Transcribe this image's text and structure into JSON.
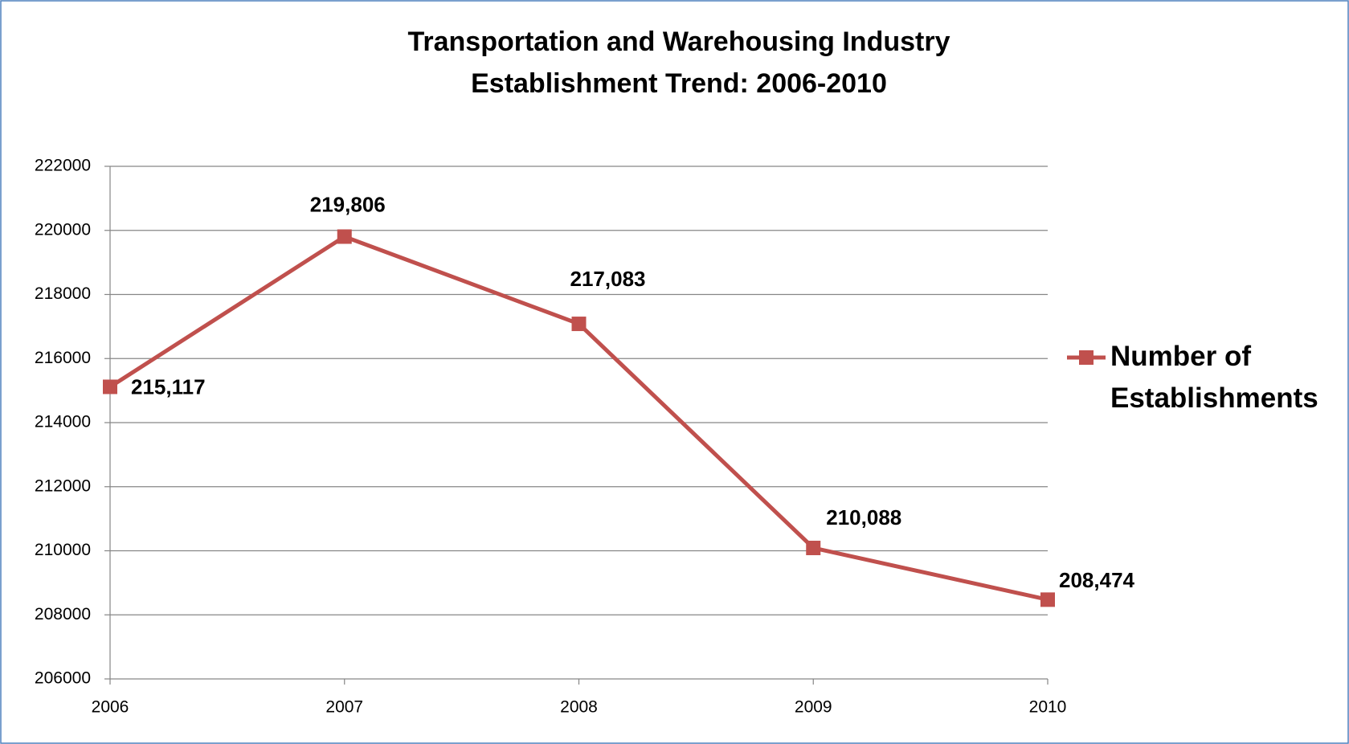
{
  "chart_data": {
    "type": "line",
    "title": [
      "Transportation and Warehousing Industry",
      "Establishment Trend: 2006-2010"
    ],
    "categories": [
      "2006",
      "2007",
      "2008",
      "2009",
      "2010"
    ],
    "series": [
      {
        "name": "Number of Establishments",
        "color": "#c0504d",
        "values": [
          215117,
          219806,
          217083,
          210088,
          208474
        ],
        "value_labels": [
          "215,117",
          "219,806",
          "217,083",
          "210,088",
          "208,474"
        ]
      }
    ],
    "ylim": [
      206000,
      222000
    ],
    "yticks": [
      206000,
      208000,
      210000,
      212000,
      214000,
      216000,
      218000,
      220000,
      222000
    ],
    "grid": true,
    "legend": "right"
  }
}
